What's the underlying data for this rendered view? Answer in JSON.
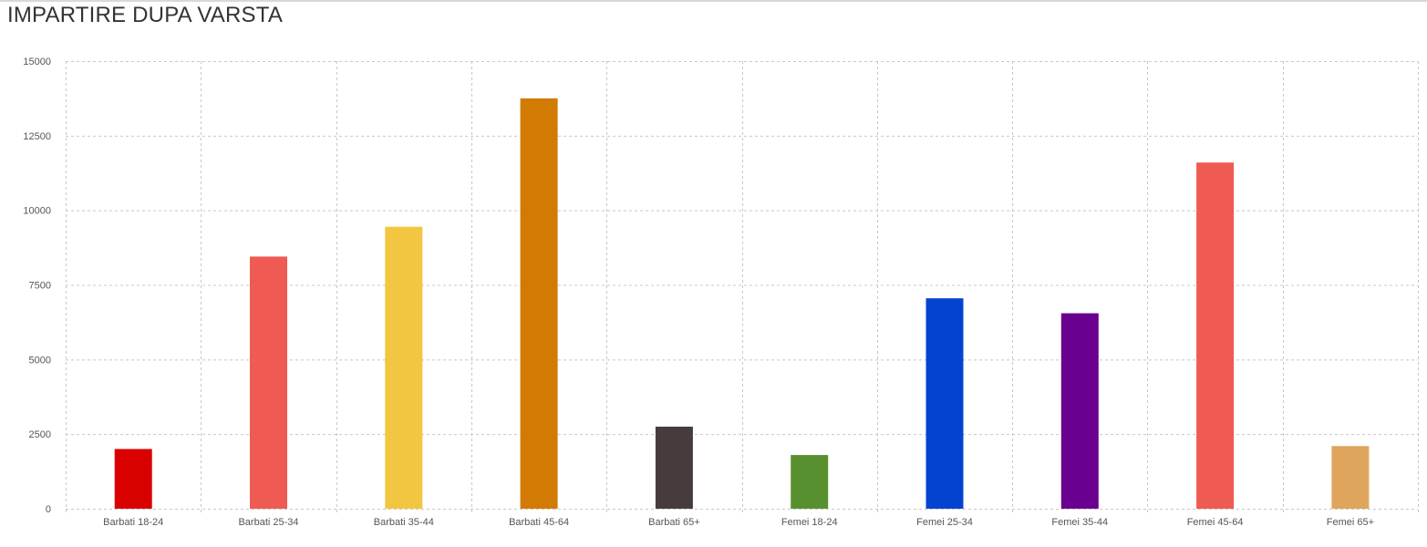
{
  "chart_data": {
    "type": "bar",
    "title": "IMPARTIRE DUPA VARSTA",
    "xlabel": "",
    "ylabel": "",
    "categories": [
      "Barbati 18-24",
      "Barbati 25-34",
      "Barbati 35-44",
      "Barbati 45-64",
      "Barbati 65+",
      "Femei 18-24",
      "Femei 25-34",
      "Femei 35-44",
      "Femei 45-64",
      "Femei 65+"
    ],
    "values": [
      2000,
      8450,
      9450,
      13750,
      2750,
      1800,
      7050,
      6550,
      11600,
      2100
    ],
    "colors": [
      "#d90000",
      "#ef5a52",
      "#f2c641",
      "#d17a04",
      "#463c3e",
      "#59902f",
      "#0443d0",
      "#6a0090",
      "#ef5a52",
      "#dfa55c"
    ],
    "ylim": [
      0,
      15000
    ],
    "yticks": [
      0,
      2500,
      5000,
      7500,
      10000,
      12500,
      15000
    ],
    "ytick_labels": [
      "0",
      "2500",
      "5000",
      "7500",
      "10000",
      "12500",
      "15000"
    ],
    "grid": true,
    "legend": "none"
  }
}
